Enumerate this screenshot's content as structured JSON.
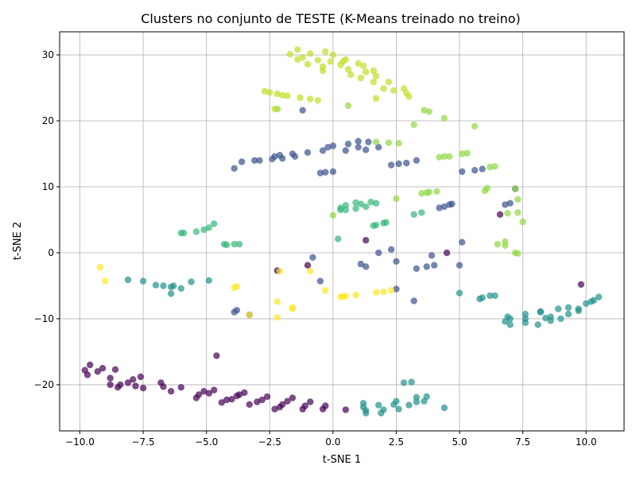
{
  "chart_data": {
    "type": "scatter",
    "title": "Clusters no conjunto de TESTE (K-Means treinado no treino)",
    "xlabel": "t-SNE 1",
    "ylabel": "t-SNE 2",
    "xlim": [
      -10.8,
      11.5
    ],
    "ylim": [
      -27,
      33.5
    ],
    "xticks": [
      -10.0,
      -7.5,
      -5.0,
      -2.5,
      0.0,
      2.5,
      5.0,
      7.5,
      10.0
    ],
    "xtick_labels": [
      "−10.0",
      "−7.5",
      "−5.0",
      "−2.5",
      "0.0",
      "2.5",
      "5.0",
      "7.5",
      "10.0"
    ],
    "yticks": [
      -20,
      -10,
      0,
      10,
      20,
      30
    ],
    "ytick_labels": [
      "−20",
      "−10",
      "0",
      "10",
      "20",
      "30"
    ],
    "grid": true,
    "series": [
      {
        "color": "#440154",
        "points": [
          [
            -9.8,
            -17.8
          ],
          [
            -9.7,
            -18.5
          ],
          [
            -9.6,
            -17.0
          ],
          [
            -9.3,
            -18.0
          ],
          [
            -9.1,
            -17.5
          ],
          [
            -8.8,
            -19.0
          ],
          [
            -8.8,
            -20.0
          ],
          [
            -8.6,
            -17.7
          ],
          [
            -8.5,
            -20.4
          ],
          [
            -8.4,
            -20.0
          ],
          [
            -8.1,
            -19.7
          ],
          [
            -7.9,
            -19.2
          ],
          [
            -7.8,
            -20.2
          ],
          [
            -7.6,
            -18.8
          ],
          [
            -7.5,
            -20.5
          ],
          [
            -6.8,
            -19.7
          ],
          [
            -6.7,
            -20.3
          ],
          [
            -6.4,
            -21.0
          ],
          [
            -6.0,
            -20.4
          ],
          [
            -5.4,
            -22.0
          ],
          [
            -5.3,
            -21.5
          ],
          [
            -5.1,
            -21.0
          ],
          [
            -4.9,
            -21.3
          ],
          [
            -4.7,
            -20.8
          ],
          [
            -4.6,
            -15.6
          ],
          [
            -4.4,
            -22.7
          ],
          [
            -4.2,
            -22.3
          ],
          [
            -4.0,
            -22.2
          ],
          [
            -3.8,
            -21.7
          ],
          [
            -3.7,
            -21.5
          ],
          [
            -3.5,
            -21.2
          ],
          [
            -3.3,
            -23.0
          ],
          [
            -3.0,
            -22.6
          ],
          [
            -2.8,
            -22.3
          ],
          [
            -2.6,
            -21.8
          ],
          [
            -2.3,
            -23.7
          ],
          [
            -2.1,
            -23.4
          ],
          [
            -2.0,
            -23.0
          ],
          [
            -1.8,
            -22.5
          ],
          [
            -1.6,
            -22.0
          ],
          [
            -1.2,
            -23.7
          ],
          [
            -1.1,
            -23.2
          ],
          [
            -0.9,
            -22.6
          ],
          [
            -0.4,
            -23.7
          ],
          [
            -0.3,
            -23.2
          ],
          [
            0.5,
            -23.8
          ],
          [
            4.5,
            0.0
          ],
          [
            6.6,
            5.8
          ],
          [
            9.8,
            -4.8
          ],
          [
            1.3,
            1.9
          ],
          [
            -1.0,
            -1.9
          ],
          [
            -2.2,
            -2.7
          ]
        ]
      },
      {
        "color": "#3b528b",
        "points": [
          [
            -3.9,
            12.8
          ],
          [
            -3.6,
            13.8
          ],
          [
            -3.1,
            14.0
          ],
          [
            -2.9,
            14.0
          ],
          [
            -2.4,
            14.2
          ],
          [
            -2.3,
            14.6
          ],
          [
            -2.1,
            14.8
          ],
          [
            -2.0,
            14.3
          ],
          [
            -1.6,
            15.0
          ],
          [
            -1.5,
            14.6
          ],
          [
            -1.2,
            21.6
          ],
          [
            -1.0,
            15.2
          ],
          [
            -0.5,
            12.1
          ],
          [
            -0.4,
            15.5
          ],
          [
            -0.3,
            12.2
          ],
          [
            -0.2,
            16.0
          ],
          [
            0.0,
            12.3
          ],
          [
            0.0,
            16.2
          ],
          [
            0.5,
            15.5
          ],
          [
            0.6,
            16.5
          ],
          [
            1.0,
            16.0
          ],
          [
            1.0,
            16.9
          ],
          [
            1.3,
            15.6
          ],
          [
            1.4,
            16.8
          ],
          [
            1.8,
            16.0
          ],
          [
            2.3,
            13.3
          ],
          [
            2.6,
            13.5
          ],
          [
            2.9,
            13.6
          ],
          [
            3.3,
            14.0
          ],
          [
            5.1,
            12.3
          ],
          [
            5.6,
            12.5
          ],
          [
            5.9,
            12.7
          ],
          [
            6.8,
            7.3
          ],
          [
            7.0,
            7.5
          ],
          [
            7.2,
            9.7
          ],
          [
            4.2,
            6.8
          ],
          [
            4.4,
            7.0
          ],
          [
            4.6,
            7.3
          ],
          [
            4.7,
            7.4
          ],
          [
            -0.5,
            -4.3
          ],
          [
            1.1,
            -1.7
          ],
          [
            1.3,
            -2.1
          ],
          [
            1.8,
            0.0
          ],
          [
            2.3,
            0.5
          ],
          [
            2.5,
            -1.3
          ],
          [
            2.5,
            -5.5
          ],
          [
            3.3,
            -2.4
          ],
          [
            3.7,
            -2.1
          ],
          [
            4.0,
            -1.9
          ],
          [
            3.9,
            -0.4
          ],
          [
            5.0,
            -1.9
          ],
          [
            5.1,
            1.6
          ],
          [
            -0.8,
            -0.7
          ],
          [
            -3.9,
            -9.0
          ],
          [
            -3.8,
            -8.7
          ],
          [
            -3.3,
            -9.4
          ],
          [
            3.2,
            -7.3
          ]
        ]
      },
      {
        "color": "#21918c",
        "points": [
          [
            -8.1,
            -4.1
          ],
          [
            -7.5,
            -4.3
          ],
          [
            -7.0,
            -4.9
          ],
          [
            -6.7,
            -5.0
          ],
          [
            -6.4,
            -5.2
          ],
          [
            -6.4,
            -6.2
          ],
          [
            -6.3,
            -5.0
          ],
          [
            -6.0,
            -5.4
          ],
          [
            -5.6,
            -4.4
          ],
          [
            -4.9,
            -4.2
          ],
          [
            5.0,
            -6.1
          ],
          [
            5.8,
            -7.0
          ],
          [
            5.9,
            -6.8
          ],
          [
            6.2,
            -6.5
          ],
          [
            6.4,
            -6.5
          ],
          [
            6.8,
            -10.4
          ],
          [
            6.9,
            -9.7
          ],
          [
            7.0,
            -10.9
          ],
          [
            7.0,
            -10.0
          ],
          [
            7.6,
            -9.3
          ],
          [
            7.6,
            -10.6
          ],
          [
            7.6,
            -10.0
          ],
          [
            8.1,
            -10.9
          ],
          [
            8.2,
            -8.9
          ],
          [
            8.2,
            -9.0
          ],
          [
            8.4,
            -9.9
          ],
          [
            8.6,
            -9.7
          ],
          [
            8.6,
            -10.3
          ],
          [
            8.9,
            -8.5
          ],
          [
            9.0,
            -10.0
          ],
          [
            9.3,
            -9.3
          ],
          [
            9.3,
            -8.3
          ],
          [
            9.7,
            -8.8
          ],
          [
            9.7,
            -8.5
          ],
          [
            10.0,
            -7.7
          ],
          [
            10.2,
            -7.4
          ],
          [
            10.3,
            -7.2
          ],
          [
            10.5,
            -6.7
          ],
          [
            1.2,
            -22.8
          ],
          [
            1.2,
            -23.4
          ],
          [
            1.3,
            -23.9
          ],
          [
            1.3,
            -24.3
          ],
          [
            1.8,
            -23.1
          ],
          [
            1.9,
            -24.3
          ],
          [
            2.0,
            -23.8
          ],
          [
            2.4,
            -23.0
          ],
          [
            2.5,
            -22.5
          ],
          [
            2.6,
            -23.7
          ],
          [
            2.8,
            -19.7
          ],
          [
            3.0,
            -23.1
          ],
          [
            3.1,
            -19.6
          ],
          [
            3.3,
            -21.9
          ],
          [
            3.3,
            -22.6
          ],
          [
            3.6,
            -22.5
          ],
          [
            3.7,
            -21.8
          ],
          [
            4.4,
            -23.5
          ]
        ]
      },
      {
        "color": "#35b779",
        "points": [
          [
            -6.0,
            3.0
          ],
          [
            -5.9,
            3.0
          ],
          [
            -5.4,
            3.2
          ],
          [
            -5.1,
            3.5
          ],
          [
            -4.9,
            3.8
          ],
          [
            -4.7,
            4.4
          ],
          [
            -4.3,
            1.3
          ],
          [
            -4.2,
            1.2
          ],
          [
            -3.9,
            1.3
          ],
          [
            -3.7,
            1.3
          ],
          [
            0.2,
            2.1
          ],
          [
            0.3,
            6.5
          ],
          [
            0.3,
            6.8
          ],
          [
            0.5,
            6.5
          ],
          [
            0.5,
            7.2
          ],
          [
            0.9,
            6.7
          ],
          [
            0.9,
            7.6
          ],
          [
            1.1,
            7.4
          ],
          [
            1.3,
            7.0
          ],
          [
            1.5,
            7.7
          ],
          [
            1.7,
            7.5
          ],
          [
            1.6,
            4.1
          ],
          [
            1.7,
            4.2
          ],
          [
            2.0,
            4.5
          ],
          [
            2.1,
            4.6
          ],
          [
            3.2,
            5.8
          ],
          [
            3.5,
            6.1
          ]
        ]
      },
      {
        "color": "#90d743",
        "points": [
          [
            -2.2,
            21.8
          ],
          [
            0.6,
            22.3
          ],
          [
            1.7,
            16.8
          ],
          [
            2.2,
            16.7
          ],
          [
            2.6,
            16.6
          ],
          [
            3.2,
            19.4
          ],
          [
            3.6,
            21.6
          ],
          [
            3.8,
            21.4
          ],
          [
            4.4,
            20.4
          ],
          [
            5.6,
            19.2
          ],
          [
            4.2,
            14.5
          ],
          [
            4.4,
            14.6
          ],
          [
            4.6,
            14.6
          ],
          [
            5.1,
            15.0
          ],
          [
            5.3,
            15.1
          ],
          [
            6.2,
            13.0
          ],
          [
            6.4,
            13.1
          ],
          [
            6.0,
            9.4
          ],
          [
            6.1,
            9.8
          ],
          [
            7.2,
            9.7
          ],
          [
            7.3,
            8.1
          ],
          [
            6.9,
            6.0
          ],
          [
            7.3,
            6.1
          ],
          [
            7.5,
            4.7
          ],
          [
            6.5,
            1.3
          ],
          [
            6.8,
            1.7
          ],
          [
            6.8,
            1.1
          ],
          [
            7.2,
            0.0
          ],
          [
            7.3,
            -0.1
          ],
          [
            3.5,
            9.0
          ],
          [
            3.7,
            9.1
          ],
          [
            3.8,
            9.2
          ],
          [
            4.1,
            9.3
          ],
          [
            2.5,
            8.2
          ],
          [
            0.0,
            5.7
          ]
        ]
      },
      {
        "color": "#bddf26",
        "points": [
          [
            -1.7,
            30.1
          ],
          [
            -1.4,
            30.8
          ],
          [
            -1.4,
            29.3
          ],
          [
            -1.2,
            29.6
          ],
          [
            -1.0,
            28.6
          ],
          [
            -0.9,
            30.2
          ],
          [
            -0.6,
            29.2
          ],
          [
            -0.4,
            27.6
          ],
          [
            -0.4,
            28.2
          ],
          [
            -0.3,
            30.5
          ],
          [
            -0.1,
            29.0
          ],
          [
            0.0,
            30.0
          ],
          [
            0.3,
            28.5
          ],
          [
            0.4,
            29.0
          ],
          [
            0.5,
            29.3
          ],
          [
            0.6,
            27.8
          ],
          [
            0.7,
            27.0
          ],
          [
            1.0,
            28.7
          ],
          [
            1.1,
            26.5
          ],
          [
            1.2,
            28.3
          ],
          [
            1.3,
            27.4
          ],
          [
            1.6,
            27.6
          ],
          [
            1.6,
            25.9
          ],
          [
            1.7,
            26.8
          ],
          [
            1.7,
            23.4
          ],
          [
            2.0,
            24.9
          ],
          [
            2.2,
            25.9
          ],
          [
            2.4,
            24.6
          ],
          [
            2.8,
            24.9
          ],
          [
            2.9,
            24.2
          ],
          [
            3.0,
            23.7
          ],
          [
            -2.7,
            24.5
          ],
          [
            -2.5,
            24.3
          ],
          [
            -2.3,
            21.8
          ],
          [
            -2.2,
            24.1
          ],
          [
            -2.0,
            23.9
          ],
          [
            -1.8,
            23.8
          ],
          [
            -1.3,
            23.5
          ],
          [
            -0.9,
            23.3
          ],
          [
            -0.6,
            23.1
          ]
        ]
      },
      {
        "color": "#fde725",
        "points": [
          [
            -9.2,
            -2.2
          ],
          [
            -9.0,
            -4.3
          ],
          [
            -3.9,
            -5.3
          ],
          [
            -3.8,
            -5.1
          ],
          [
            -3.3,
            -9.4
          ],
          [
            -2.2,
            -7.4
          ],
          [
            -2.2,
            -9.8
          ],
          [
            -2.1,
            -2.8
          ],
          [
            -1.6,
            -8.3
          ],
          [
            -1.6,
            -8.5
          ],
          [
            -0.9,
            -2.8
          ],
          [
            -0.3,
            -5.7
          ],
          [
            0.3,
            -6.7
          ],
          [
            0.4,
            -6.6
          ],
          [
            0.5,
            -6.6
          ],
          [
            0.9,
            -6.4
          ],
          [
            1.7,
            -6.0
          ],
          [
            2.0,
            -5.9
          ],
          [
            2.3,
            -5.7
          ]
        ]
      }
    ]
  }
}
